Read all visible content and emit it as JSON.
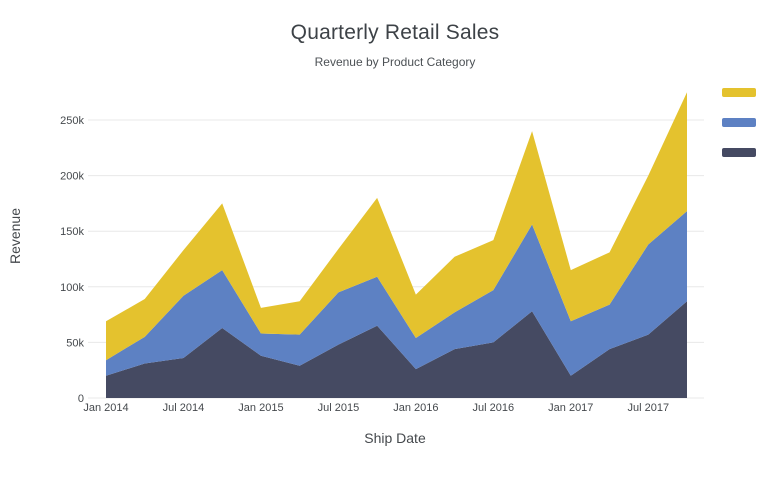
{
  "title": "Quarterly Retail Sales",
  "subtitle": "Revenue by Product Category",
  "chart_data": {
    "type": "area",
    "stacked": true,
    "title": "Quarterly Retail Sales",
    "subtitle": "Revenue by Product Category",
    "xlabel": "Ship Date",
    "ylabel": "Revenue",
    "x": [
      "Jan 2014",
      "Apr 2014",
      "Jul 2014",
      "Oct 2014",
      "Jan 2015",
      "Apr 2015",
      "Jul 2015",
      "Oct 2015",
      "Jan 2016",
      "Apr 2016",
      "Jul 2016",
      "Oct 2016",
      "Jan 2017",
      "Apr 2017",
      "Jul 2017",
      "Oct 2017"
    ],
    "x_tick_labels": [
      "Jan 2014",
      "Jul 2014",
      "Jan 2015",
      "Jul 2015",
      "Jan 2016",
      "Jul 2016",
      "Jan 2017",
      "Jul 2017"
    ],
    "x_tick_every": 2,
    "y_ticks": [
      "0",
      "50k",
      "100k",
      "150k",
      "200k",
      "250k"
    ],
    "y_tick_values": [
      0,
      50000,
      100000,
      150000,
      200000,
      250000
    ],
    "ylim": [
      0,
      278000
    ],
    "grid": true,
    "legend_position": "right",
    "legend_labels_visible": false,
    "series": [
      {
        "name": "dark-navy",
        "color": "#454a62",
        "values": [
          20000,
          31000,
          36000,
          63000,
          38000,
          29000,
          48000,
          65000,
          26000,
          44000,
          50000,
          78000,
          20000,
          44000,
          57000,
          87000
        ]
      },
      {
        "name": "blue",
        "color": "#5d81c3",
        "values": [
          14000,
          24000,
          56000,
          52000,
          20000,
          28000,
          47000,
          44000,
          28000,
          33000,
          47000,
          78000,
          49000,
          40000,
          81000,
          81000
        ]
      },
      {
        "name": "yellow",
        "color": "#e4c22e",
        "values": [
          35000,
          34000,
          41000,
          60000,
          23000,
          30000,
          39000,
          71000,
          39000,
          50000,
          45000,
          84000,
          46000,
          47000,
          62000,
          107000
        ]
      }
    ],
    "colors": {
      "grid_line": "#e8e8e8",
      "tick_label": "#45494d",
      "title_text": "#3d4247"
    }
  }
}
